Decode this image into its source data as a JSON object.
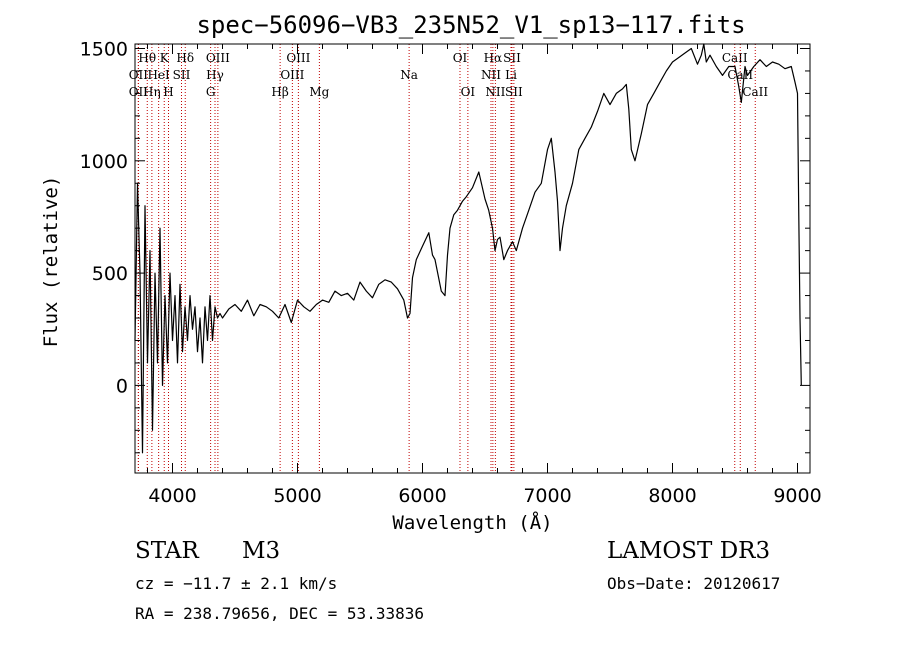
{
  "chart_data": {
    "type": "line",
    "title": "spec−56096−VB3_235N52_V1_sp13−117.fits",
    "xlabel": "Wavelength (Å)",
    "ylabel": "Flux (relative)",
    "xlim": [
      3700,
      9100
    ],
    "ylim": [
      -390,
      1520
    ],
    "xticks": [
      4000,
      5000,
      6000,
      7000,
      8000,
      9000
    ],
    "yticks": [
      0,
      500,
      1000,
      1500
    ],
    "series": [
      {
        "name": "spectrum",
        "x": [
          3700,
          3720,
          3740,
          3760,
          3780,
          3800,
          3820,
          3840,
          3860,
          3880,
          3900,
          3920,
          3940,
          3960,
          3980,
          4000,
          4020,
          4040,
          4060,
          4080,
          4100,
          4120,
          4140,
          4160,
          4180,
          4200,
          4220,
          4240,
          4260,
          4280,
          4300,
          4320,
          4340,
          4360,
          4380,
          4400,
          4450,
          4500,
          4550,
          4600,
          4650,
          4700,
          4750,
          4800,
          4850,
          4900,
          4950,
          5000,
          5050,
          5100,
          5150,
          5200,
          5250,
          5300,
          5350,
          5400,
          5450,
          5500,
          5550,
          5600,
          5650,
          5700,
          5750,
          5800,
          5850,
          5880,
          5900,
          5920,
          5950,
          6000,
          6050,
          6080,
          6100,
          6150,
          6180,
          6200,
          6220,
          6250,
          6280,
          6300,
          6320,
          6350,
          6400,
          6450,
          6500,
          6530,
          6560,
          6580,
          6600,
          6620,
          6650,
          6680,
          6700,
          6720,
          6750,
          6800,
          6850,
          6900,
          6950,
          7000,
          7030,
          7060,
          7080,
          7100,
          7120,
          7150,
          7200,
          7250,
          7300,
          7350,
          7400,
          7450,
          7500,
          7550,
          7600,
          7630,
          7650,
          7670,
          7700,
          7750,
          7800,
          7850,
          7900,
          7950,
          8000,
          8050,
          8100,
          8150,
          8200,
          8230,
          8250,
          8270,
          8300,
          8350,
          8400,
          8450,
          8500,
          8530,
          8550,
          8580,
          8600,
          8650,
          8700,
          8750,
          8800,
          8850,
          8900,
          8950,
          8980,
          9000,
          9010,
          9020,
          9030
        ],
        "y": [
          200,
          900,
          500,
          -300,
          800,
          100,
          600,
          -200,
          500,
          100,
          700,
          0,
          400,
          100,
          500,
          200,
          400,
          100,
          450,
          150,
          350,
          200,
          400,
          250,
          350,
          150,
          300,
          100,
          350,
          200,
          400,
          200,
          350,
          300,
          320,
          300,
          340,
          360,
          330,
          380,
          310,
          360,
          350,
          330,
          300,
          360,
          280,
          380,
          350,
          330,
          360,
          380,
          370,
          420,
          400,
          410,
          380,
          460,
          420,
          390,
          450,
          470,
          460,
          430,
          380,
          300,
          320,
          480,
          560,
          620,
          680,
          580,
          560,
          420,
          400,
          580,
          700,
          760,
          780,
          800,
          820,
          840,
          880,
          950,
          830,
          780,
          700,
          600,
          650,
          660,
          560,
          600,
          620,
          640,
          600,
          700,
          780,
          860,
          900,
          1050,
          1100,
          950,
          820,
          600,
          700,
          800,
          900,
          1050,
          1100,
          1150,
          1220,
          1300,
          1250,
          1300,
          1320,
          1340,
          1230,
          1050,
          1000,
          1120,
          1250,
          1300,
          1350,
          1400,
          1440,
          1460,
          1480,
          1500,
          1430,
          1470,
          1520,
          1440,
          1470,
          1420,
          1380,
          1420,
          1420,
          1330,
          1260,
          1420,
          1380,
          1420,
          1450,
          1420,
          1440,
          1430,
          1410,
          1420,
          1350,
          1300,
          750,
          300,
          0
        ]
      }
    ],
    "line_markers": [
      {
        "label": "Hθ",
        "x": 3798,
        "row": 1
      },
      {
        "label": "OII",
        "x": 3727,
        "row": 2
      },
      {
        "label": "OII",
        "x": 3727,
        "row": 3
      },
      {
        "label": "K",
        "x": 3934,
        "row": 1
      },
      {
        "label": "HeI",
        "x": 3889,
        "row": 2
      },
      {
        "label": "Hη",
        "x": 3835,
        "row": 3
      },
      {
        "label": "SII",
        "x": 4072,
        "row": 2
      },
      {
        "label": "H",
        "x": 3968,
        "row": 3
      },
      {
        "label": "Hδ",
        "x": 4102,
        "row": 1
      },
      {
        "label": "OIII",
        "x": 4363,
        "row": 1
      },
      {
        "label": "Hγ",
        "x": 4340,
        "row": 2
      },
      {
        "label": "G",
        "x": 4305,
        "row": 3
      },
      {
        "label": "Hβ",
        "x": 4861,
        "row": 3
      },
      {
        "label": "OIII",
        "x": 5007,
        "row": 1
      },
      {
        "label": "OIII",
        "x": 4959,
        "row": 2
      },
      {
        "label": "Mg",
        "x": 5175,
        "row": 3
      },
      {
        "label": "Na",
        "x": 5893,
        "row": 2
      },
      {
        "label": "OI",
        "x": 6300,
        "row": 1
      },
      {
        "label": "OI",
        "x": 6363,
        "row": 3
      },
      {
        "label": "Hα",
        "x": 6563,
        "row": 1
      },
      {
        "label": "NII",
        "x": 6548,
        "row": 2
      },
      {
        "label": "NII",
        "x": 6583,
        "row": 3
      },
      {
        "label": "SII",
        "x": 6716,
        "row": 1
      },
      {
        "label": "Li",
        "x": 6708,
        "row": 2
      },
      {
        "label": "SII",
        "x": 6731,
        "row": 3
      },
      {
        "label": "CaII",
        "x": 8498,
        "row": 1
      },
      {
        "label": "CaII",
        "x": 8542,
        "row": 2
      },
      {
        "label": "CaII",
        "x": 8662,
        "row": 3
      }
    ]
  },
  "info": {
    "class": "STAR",
    "subclass": "M3",
    "survey": "LAMOST DR3",
    "cz": "cz = −11.7 ± 2.1 km/s",
    "obs_date": "Obs−Date: 20120617",
    "radec": "RA = 238.79656, DEC =  53.33836"
  }
}
